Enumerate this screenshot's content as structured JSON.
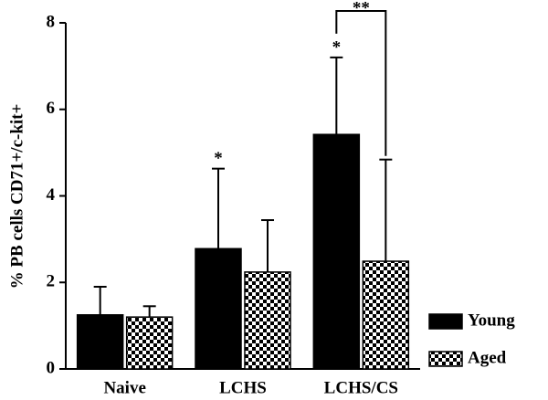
{
  "chart_data": {
    "type": "bar",
    "y_label": "% PB cells CD71+/c-kit+",
    "categories": [
      "Naive",
      "LCHS",
      "LCHS/CS"
    ],
    "series": [
      {
        "name": "Young",
        "color": "#000000",
        "values": [
          1.25,
          2.78,
          5.42
        ],
        "errors": [
          0.65,
          1.85,
          1.78
        ]
      },
      {
        "name": "Aged",
        "color": "#000000",
        "pattern": "checker",
        "values": [
          1.2,
          2.24,
          2.49
        ],
        "errors": [
          0.25,
          1.2,
          2.35
        ]
      }
    ],
    "ylim": [
      0,
      8
    ],
    "yticks": [
      0,
      2,
      4,
      6,
      8
    ],
    "annotations": [
      "*",
      "*",
      "**"
    ],
    "legend": "lower right"
  }
}
